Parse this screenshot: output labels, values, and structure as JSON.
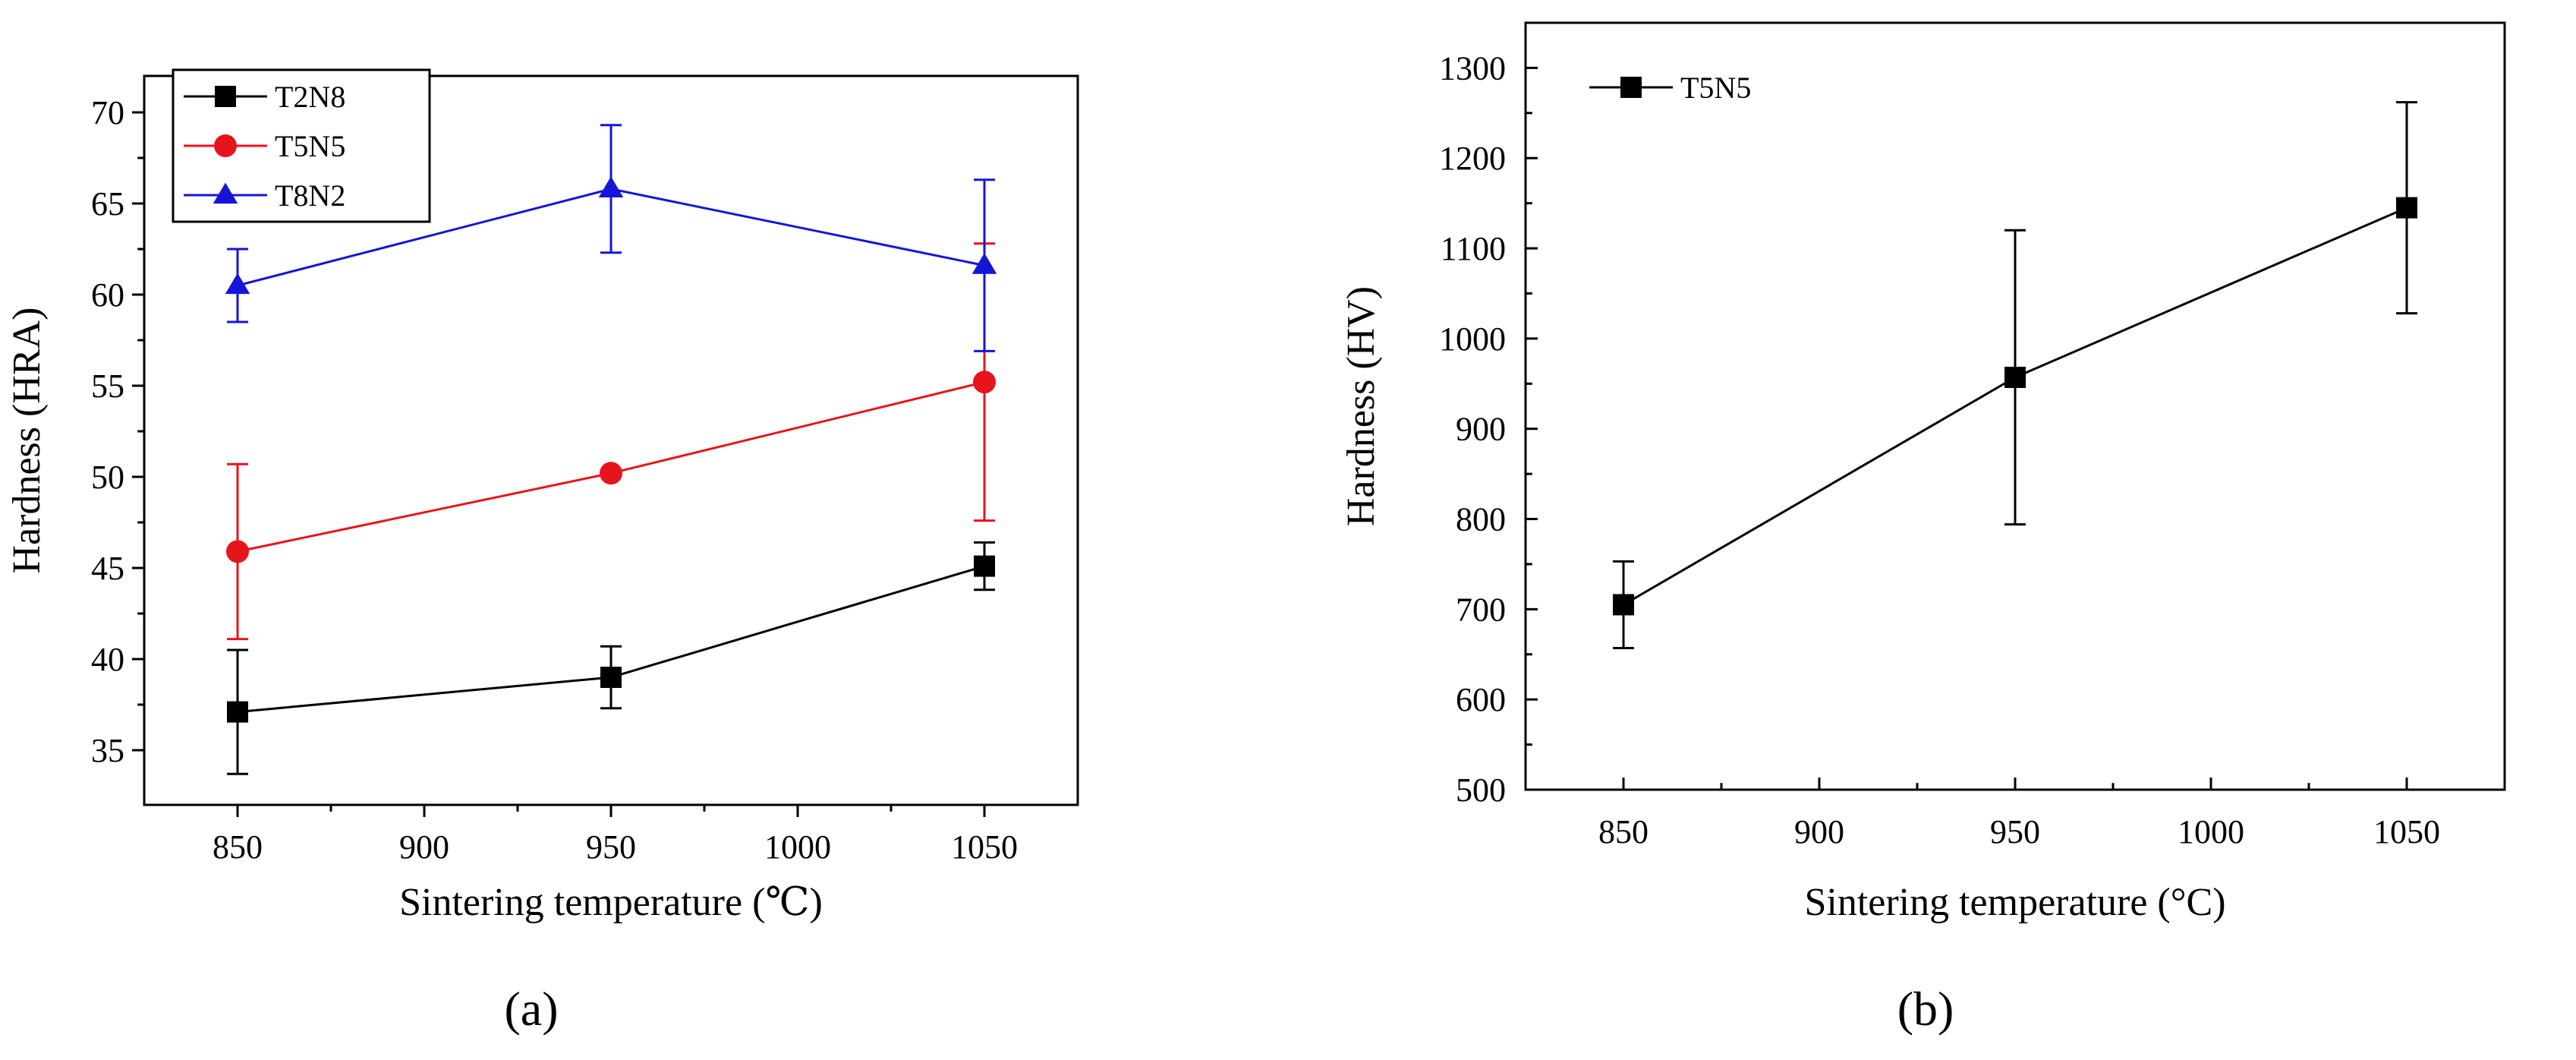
{
  "chart_data": [
    {
      "type": "line",
      "panel_label": "(a)",
      "title": "",
      "xlabel": "Sintering temperature (℃)",
      "ylabel": "Hardness (HRA)",
      "xlim": [
        825,
        1075
      ],
      "ylim": [
        32,
        72
      ],
      "xticks": [
        850,
        900,
        950,
        1000,
        1050
      ],
      "yticks": [
        35,
        40,
        45,
        50,
        55,
        60,
        65,
        70
      ],
      "legend_position": "top-left",
      "series": [
        {
          "name": "T2N8",
          "color": "#000000",
          "marker": "square",
          "x": [
            850,
            950,
            1050
          ],
          "y": [
            37.1,
            39.0,
            45.1
          ],
          "err": [
            3.4,
            1.7,
            1.3
          ]
        },
        {
          "name": "T5N5",
          "color": "#e8141c",
          "marker": "circle",
          "x": [
            850,
            950,
            1050
          ],
          "y": [
            45.9,
            50.2,
            55.2
          ],
          "err": [
            4.8,
            0,
            7.6
          ]
        },
        {
          "name": "T8N2",
          "color": "#1515d8",
          "marker": "triangle",
          "x": [
            850,
            950,
            1050
          ],
          "y": [
            60.5,
            65.8,
            61.6
          ],
          "err": [
            2.0,
            3.5,
            4.7
          ]
        }
      ]
    },
    {
      "type": "line",
      "panel_label": "(b)",
      "title": "",
      "xlabel": "Sintering temperature (°C)",
      "ylabel": "Hardness (HV)",
      "xlim": [
        825,
        1075
      ],
      "ylim": [
        500,
        1350
      ],
      "xticks": [
        850,
        900,
        950,
        1000,
        1050
      ],
      "yticks": [
        500,
        600,
        700,
        800,
        900,
        1000,
        1100,
        1200,
        1300
      ],
      "legend_position": "top-left",
      "series": [
        {
          "name": "T5N5",
          "color": "#000000",
          "marker": "square",
          "x": [
            850,
            950,
            1050
          ],
          "y": [
            705,
            957,
            1145
          ],
          "err": [
            48,
            163,
            117
          ]
        }
      ]
    }
  ]
}
